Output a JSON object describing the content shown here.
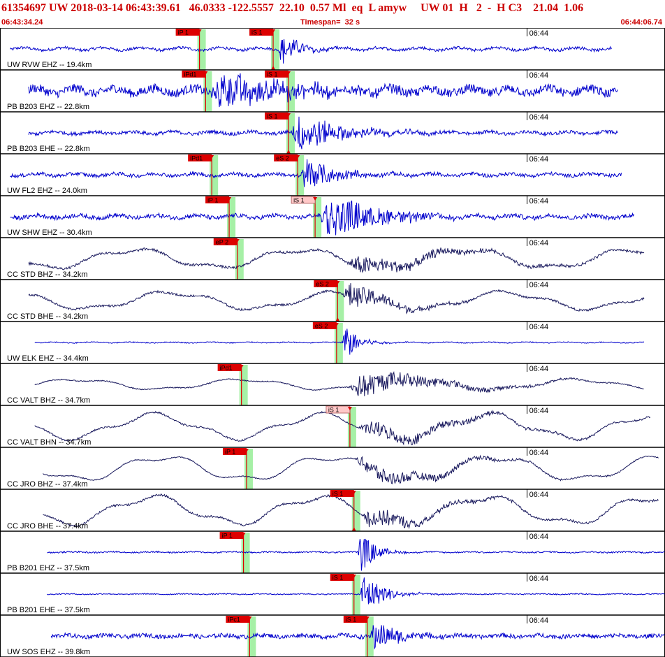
{
  "header": {
    "title": "61354697 UW 2018-03-14 06:43:39.61   46.0333 -122.5557  22.10  0.57 Ml  eq  L amyw     UW 01  H   2  -  H C3    21.04  1.06",
    "start_time": "06:43:34.24",
    "timespan": "Timespan=  32 s",
    "end_time": "06:44:06.74"
  },
  "colors": {
    "trace_blue": "#0000cc",
    "trace_navy": "#1a1a5e",
    "pick_flag": "#dd0000",
    "pick_flag_light": "#ffc8c8",
    "pick_window": "#a6f0a6",
    "header_text": "#cc0000"
  },
  "chart_data": {
    "type": "line",
    "title": "",
    "xlabel": "",
    "ylabel": "",
    "x_unit": "seconds since 06:43:34.24",
    "xlim": [
      0,
      32.5
    ],
    "time_tick": {
      "label": "06:44",
      "t": 25.76
    },
    "panels": [
      {
        "label": "UW RVW EHZ -- 19.4km",
        "color": "blue",
        "kind": "short",
        "amp": 0.3,
        "noise": 0.08,
        "trace_start": 0.5,
        "trace_end": 29.9,
        "event_t": 13.6,
        "event_amp": 0.9,
        "event_len": 2.0,
        "picks": [
          {
            "label": "iP 1",
            "t": 9.75,
            "style": "dark"
          },
          {
            "label": "iS 1",
            "t": 13.35,
            "style": "dark",
            "arrow": "down"
          }
        ]
      },
      {
        "label": "PB B203 EHZ -- 22.8km",
        "color": "blue",
        "kind": "short",
        "amp": 0.6,
        "noise": 0.25,
        "trace_start": 1.4,
        "trace_end": 30.2,
        "event_t": 10.3,
        "event_amp": 1.1,
        "event_len": 7.0,
        "picks": [
          {
            "label": "iPd1",
            "t": 10.05,
            "style": "dark"
          },
          {
            "label": "iS 1",
            "t": 14.1,
            "style": "dark"
          }
        ]
      },
      {
        "label": "PB B203 EHE -- 22.8km",
        "color": "blue",
        "kind": "short",
        "amp": 0.25,
        "noise": 0.1,
        "trace_start": 1.4,
        "trace_end": 30.2,
        "event_t": 14.2,
        "event_amp": 1.1,
        "event_len": 4.5,
        "picks": [
          {
            "label": "iS 1",
            "t": 14.1,
            "style": "dark",
            "arrow": "down"
          }
        ]
      },
      {
        "label": "UW FL2 EHZ -- 24.0km",
        "color": "blue",
        "kind": "short",
        "amp": 0.25,
        "noise": 0.1,
        "trace_start": 0.5,
        "trace_end": 30.4,
        "event_t": 14.7,
        "event_amp": 1.0,
        "event_len": 3.0,
        "picks": [
          {
            "label": "iPd1",
            "t": 10.35,
            "style": "dark"
          },
          {
            "label": "eS 2",
            "t": 14.55,
            "style": "dark"
          }
        ]
      },
      {
        "label": "UW SHW EHZ -- 30.4km",
        "color": "blue",
        "kind": "short",
        "amp": 0.3,
        "noise": 0.12,
        "trace_start": 0.5,
        "trace_end": 31.0,
        "event_t": 15.6,
        "event_amp": 1.3,
        "event_len": 5.5,
        "picks": [
          {
            "label": "iP 1",
            "t": 11.2,
            "style": "dark"
          },
          {
            "label": "iS 1",
            "t": 15.4,
            "style": "light"
          }
        ]
      },
      {
        "label": "CC STD BHZ -- 34.2km",
        "color": "navy",
        "kind": "long",
        "amp": 0.55,
        "noise": 0.12,
        "trace_start": 1.4,
        "trace_end": 31.5,
        "event_t": 16.8,
        "event_amp": 0.5,
        "event_len": 9.0,
        "picks": [
          {
            "label": "eP 2",
            "t": 11.6,
            "style": "dark"
          }
        ]
      },
      {
        "label": "CC STD BHE -- 34.2km",
        "color": "navy",
        "kind": "long",
        "amp": 0.5,
        "noise": 0.1,
        "trace_start": 1.4,
        "trace_end": 31.5,
        "event_t": 16.7,
        "event_amp": 0.7,
        "event_len": 5.0,
        "picks": [
          {
            "label": "eS 2",
            "t": 16.5,
            "style": "dark",
            "arrow": "down"
          }
        ]
      },
      {
        "label": "UW ELK EHZ -- 34.4km",
        "color": "blue",
        "kind": "short",
        "amp": 0.08,
        "noise": 0.03,
        "trace_start": 1.7,
        "trace_end": 31.5,
        "event_t": 16.7,
        "event_amp": 1.1,
        "event_len": 1.5,
        "picks": [
          {
            "label": "eS 2",
            "t": 16.45,
            "style": "dark"
          }
        ]
      },
      {
        "label": "CC VALT BHZ -- 34.7km",
        "color": "navy",
        "kind": "long",
        "amp": 0.3,
        "noise": 0.05,
        "trace_start": 1.7,
        "trace_end": 31.5,
        "event_t": 17.0,
        "event_amp": 0.7,
        "event_len": 8.0,
        "picks": [
          {
            "label": "iPd1",
            "t": 11.8,
            "style": "dark"
          }
        ]
      },
      {
        "label": "CC VALT BHN -- 34.7km",
        "color": "navy",
        "kind": "long",
        "amp": 0.7,
        "noise": 0.08,
        "trace_start": 1.7,
        "trace_end": 31.8,
        "event_t": 17.5,
        "event_amp": 0.45,
        "event_len": 9.0,
        "picks": [
          {
            "label": "iS 1",
            "t": 17.1,
            "style": "light"
          }
        ]
      },
      {
        "label": "CC JRO BHZ -- 37.4km",
        "color": "navy",
        "kind": "long",
        "amp": 0.7,
        "noise": 0.05,
        "trace_start": 2.1,
        "trace_end": 32.2,
        "event_t": 17.3,
        "event_amp": 0.5,
        "event_len": 8.0,
        "picks": [
          {
            "label": "iP 1",
            "t": 12.05,
            "style": "dark"
          }
        ]
      },
      {
        "label": "CC JRO BHE -- 37.4km",
        "color": "navy",
        "kind": "long",
        "amp": 0.8,
        "noise": 0.1,
        "trace_start": 2.1,
        "trace_end": 32.2,
        "event_t": 17.6,
        "event_amp": 0.55,
        "event_len": 6.0,
        "picks": [
          {
            "label": "iS 1",
            "t": 17.3,
            "style": "dark",
            "arrow": "down"
          }
        ]
      },
      {
        "label": "PB B201 EHZ -- 37.5km",
        "color": "blue",
        "kind": "short",
        "amp": 0.08,
        "noise": 0.04,
        "trace_start": 2.3,
        "trace_end": 32.5,
        "event_t": 17.5,
        "event_amp": 1.2,
        "event_len": 1.5,
        "picks": [
          {
            "label": "iP 1",
            "t": 11.9,
            "style": "dark"
          }
        ]
      },
      {
        "label": "PB B201 EHE -- 37.5km",
        "color": "blue",
        "kind": "short",
        "amp": 0.06,
        "noise": 0.03,
        "trace_start": 2.3,
        "trace_end": 32.5,
        "event_t": 17.6,
        "event_amp": 1.3,
        "event_len": 2.0,
        "picks": [
          {
            "label": "iS 1",
            "t": 17.3,
            "style": "dark"
          }
        ]
      },
      {
        "label": "UW SOS EHZ -- 39.8km",
        "color": "blue",
        "kind": "short",
        "amp": 0.2,
        "noise": 0.12,
        "trace_start": 2.5,
        "trace_end": 32.5,
        "event_t": 18.1,
        "event_amp": 0.9,
        "event_len": 2.5,
        "picks": [
          {
            "label": "iPc1",
            "t": 12.2,
            "style": "dark"
          },
          {
            "label": "iS 1",
            "t": 17.95,
            "style": "dark"
          }
        ]
      }
    ]
  }
}
